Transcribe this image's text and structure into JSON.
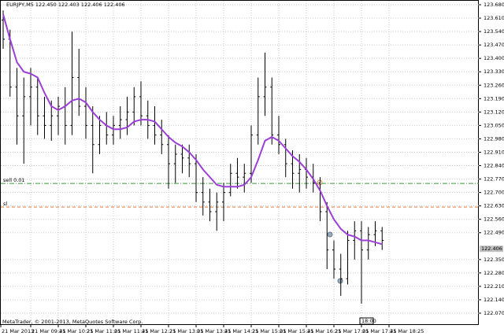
{
  "chart_data": {
    "type": "ohlc",
    "title": "EURJPY,M5  122.450 122.403 122.406 122.406",
    "footer": "MetaTrader, © 2001-2013, MetaQuotes Software Corp.",
    "xlabels": [
      "21 Mar 2013",
      "21 Mar 09:45",
      "21 Mar 10:25",
      "21 Mar 11:05",
      "21 Mar 11:45",
      "21 Mar 12:25",
      "21 Mar 13:05",
      "21 Mar 13:45",
      "21 Mar 14:25",
      "21 Mar 15:05",
      "21 Mar 15:45",
      "21 Mar 16:25",
      "21 Mar 17:05",
      "21 Mar 17:45",
      "21 Mar 18:25"
    ],
    "time_box": "18:00",
    "open": [
      123.6,
      123.5,
      123.25,
      123.1,
      123.2,
      123.25,
      123.1,
      123.05,
      123.1,
      123.15,
      123.05,
      123.3,
      123.15,
      123.05,
      122.95,
      123.05,
      123.0,
      123.05,
      123.08,
      123.12,
      123.2,
      123.1,
      123.05,
      123.0,
      122.95,
      122.85,
      122.9,
      122.88,
      122.85,
      122.7,
      122.65,
      122.6,
      122.65,
      122.7,
      122.8,
      122.78,
      122.8,
      123.0,
      123.2,
      123.25,
      123.0,
      122.95,
      122.85,
      122.8,
      122.82,
      122.78,
      122.75,
      122.6,
      122.4,
      122.3,
      122.25,
      122.45,
      122.5,
      122.4,
      122.48,
      122.5
    ],
    "high": [
      123.65,
      123.55,
      123.35,
      123.3,
      123.35,
      123.3,
      123.2,
      123.18,
      123.2,
      123.25,
      123.54,
      123.45,
      123.25,
      123.15,
      123.1,
      123.12,
      123.1,
      123.15,
      123.2,
      123.25,
      123.28,
      123.18,
      123.15,
      123.08,
      123.0,
      122.95,
      122.95,
      122.95,
      122.9,
      122.78,
      122.72,
      122.7,
      122.75,
      122.85,
      122.88,
      122.85,
      123.05,
      123.3,
      123.43,
      123.3,
      123.1,
      122.98,
      122.92,
      122.9,
      122.88,
      122.85,
      122.78,
      122.65,
      122.45,
      122.38,
      122.5,
      122.55,
      122.55,
      122.52,
      122.55,
      122.52
    ],
    "low": [
      123.45,
      123.2,
      122.95,
      122.85,
      123.05,
      123.0,
      122.98,
      122.97,
      123.0,
      122.95,
      123.0,
      123.1,
      122.98,
      122.8,
      122.9,
      122.95,
      122.95,
      122.98,
      123.0,
      123.05,
      123.05,
      122.98,
      122.95,
      122.9,
      122.72,
      122.75,
      122.8,
      122.78,
      122.65,
      122.58,
      122.55,
      122.5,
      122.55,
      122.68,
      122.72,
      122.7,
      122.75,
      122.95,
      123.1,
      122.95,
      122.9,
      122.78,
      122.72,
      122.7,
      122.72,
      122.7,
      122.55,
      122.3,
      122.25,
      122.16,
      122.22,
      122.35,
      122.12,
      122.35,
      122.42,
      122.4
    ],
    "close": [
      123.5,
      123.25,
      123.1,
      123.2,
      123.25,
      123.1,
      123.05,
      123.1,
      123.15,
      123.05,
      123.3,
      123.15,
      123.05,
      122.95,
      123.05,
      123.0,
      123.05,
      123.08,
      123.12,
      123.2,
      123.1,
      123.05,
      123.0,
      122.95,
      122.85,
      122.9,
      122.88,
      122.85,
      122.7,
      122.65,
      122.6,
      122.65,
      122.7,
      122.8,
      122.78,
      122.8,
      123.0,
      123.2,
      123.25,
      123.0,
      122.95,
      122.85,
      122.8,
      122.82,
      122.78,
      122.75,
      122.6,
      122.4,
      122.3,
      122.25,
      122.45,
      122.5,
      122.4,
      122.48,
      122.5,
      122.45
    ],
    "ma": {
      "color": "#9b3fd6",
      "values": [
        123.63,
        123.5,
        123.38,
        123.33,
        123.32,
        123.3,
        123.22,
        123.15,
        123.13,
        123.15,
        123.18,
        123.19,
        123.17,
        123.12,
        123.08,
        123.05,
        123.03,
        123.03,
        123.04,
        123.07,
        123.08,
        123.08,
        123.07,
        123.03,
        122.99,
        122.96,
        122.94,
        122.91,
        122.87,
        122.82,
        122.78,
        122.74,
        122.73,
        122.73,
        122.73,
        122.74,
        122.78,
        122.87,
        122.97,
        122.99,
        122.97,
        122.93,
        122.89,
        122.86,
        122.82,
        122.77,
        122.71,
        122.63,
        122.56,
        122.51,
        122.48,
        122.47,
        122.45,
        122.45,
        122.44,
        122.43
      ]
    },
    "levels": [
      {
        "label": "sell 0.01",
        "value": 122.747,
        "color": "#3a9a3a"
      },
      {
        "label": "sl",
        "value": 122.624,
        "color": "#e07a3a"
      }
    ],
    "current": {
      "value": 122.406,
      "label": "122.406"
    },
    "ylim": [
      122.07,
      123.68
    ],
    "yticks": [
      {
        "value": 122.07,
        "label": "122.070"
      },
      {
        "value": 122.14,
        "label": "122.140"
      },
      {
        "value": 122.21,
        "label": "122.210"
      },
      {
        "value": 122.28,
        "label": "122.280"
      },
      {
        "value": 122.35,
        "label": "122.350"
      },
      {
        "value": 122.49,
        "label": "122.490"
      },
      {
        "value": 122.56,
        "label": "122.560"
      },
      {
        "value": 122.63,
        "label": "122.630"
      },
      {
        "value": 122.7,
        "label": "122.700"
      },
      {
        "value": 122.77,
        "label": "122.770"
      },
      {
        "value": 122.84,
        "label": "122.840"
      },
      {
        "value": 122.91,
        "label": "122.910"
      },
      {
        "value": 122.98,
        "label": "122.980"
      },
      {
        "value": 123.05,
        "label": "123.050"
      },
      {
        "value": 123.12,
        "label": "123.120"
      },
      {
        "value": 123.19,
        "label": "123.190"
      },
      {
        "value": 123.26,
        "label": "123.260"
      },
      {
        "value": 123.33,
        "label": "123.330"
      },
      {
        "value": 123.4,
        "label": "123.400"
      },
      {
        "value": 123.47,
        "label": "123.470"
      },
      {
        "value": 123.54,
        "label": "123.540"
      },
      {
        "value": 123.61,
        "label": "123.610"
      },
      {
        "value": 123.68,
        "label": "123.680"
      }
    ],
    "grid": true,
    "bar_color": "#000000"
  }
}
